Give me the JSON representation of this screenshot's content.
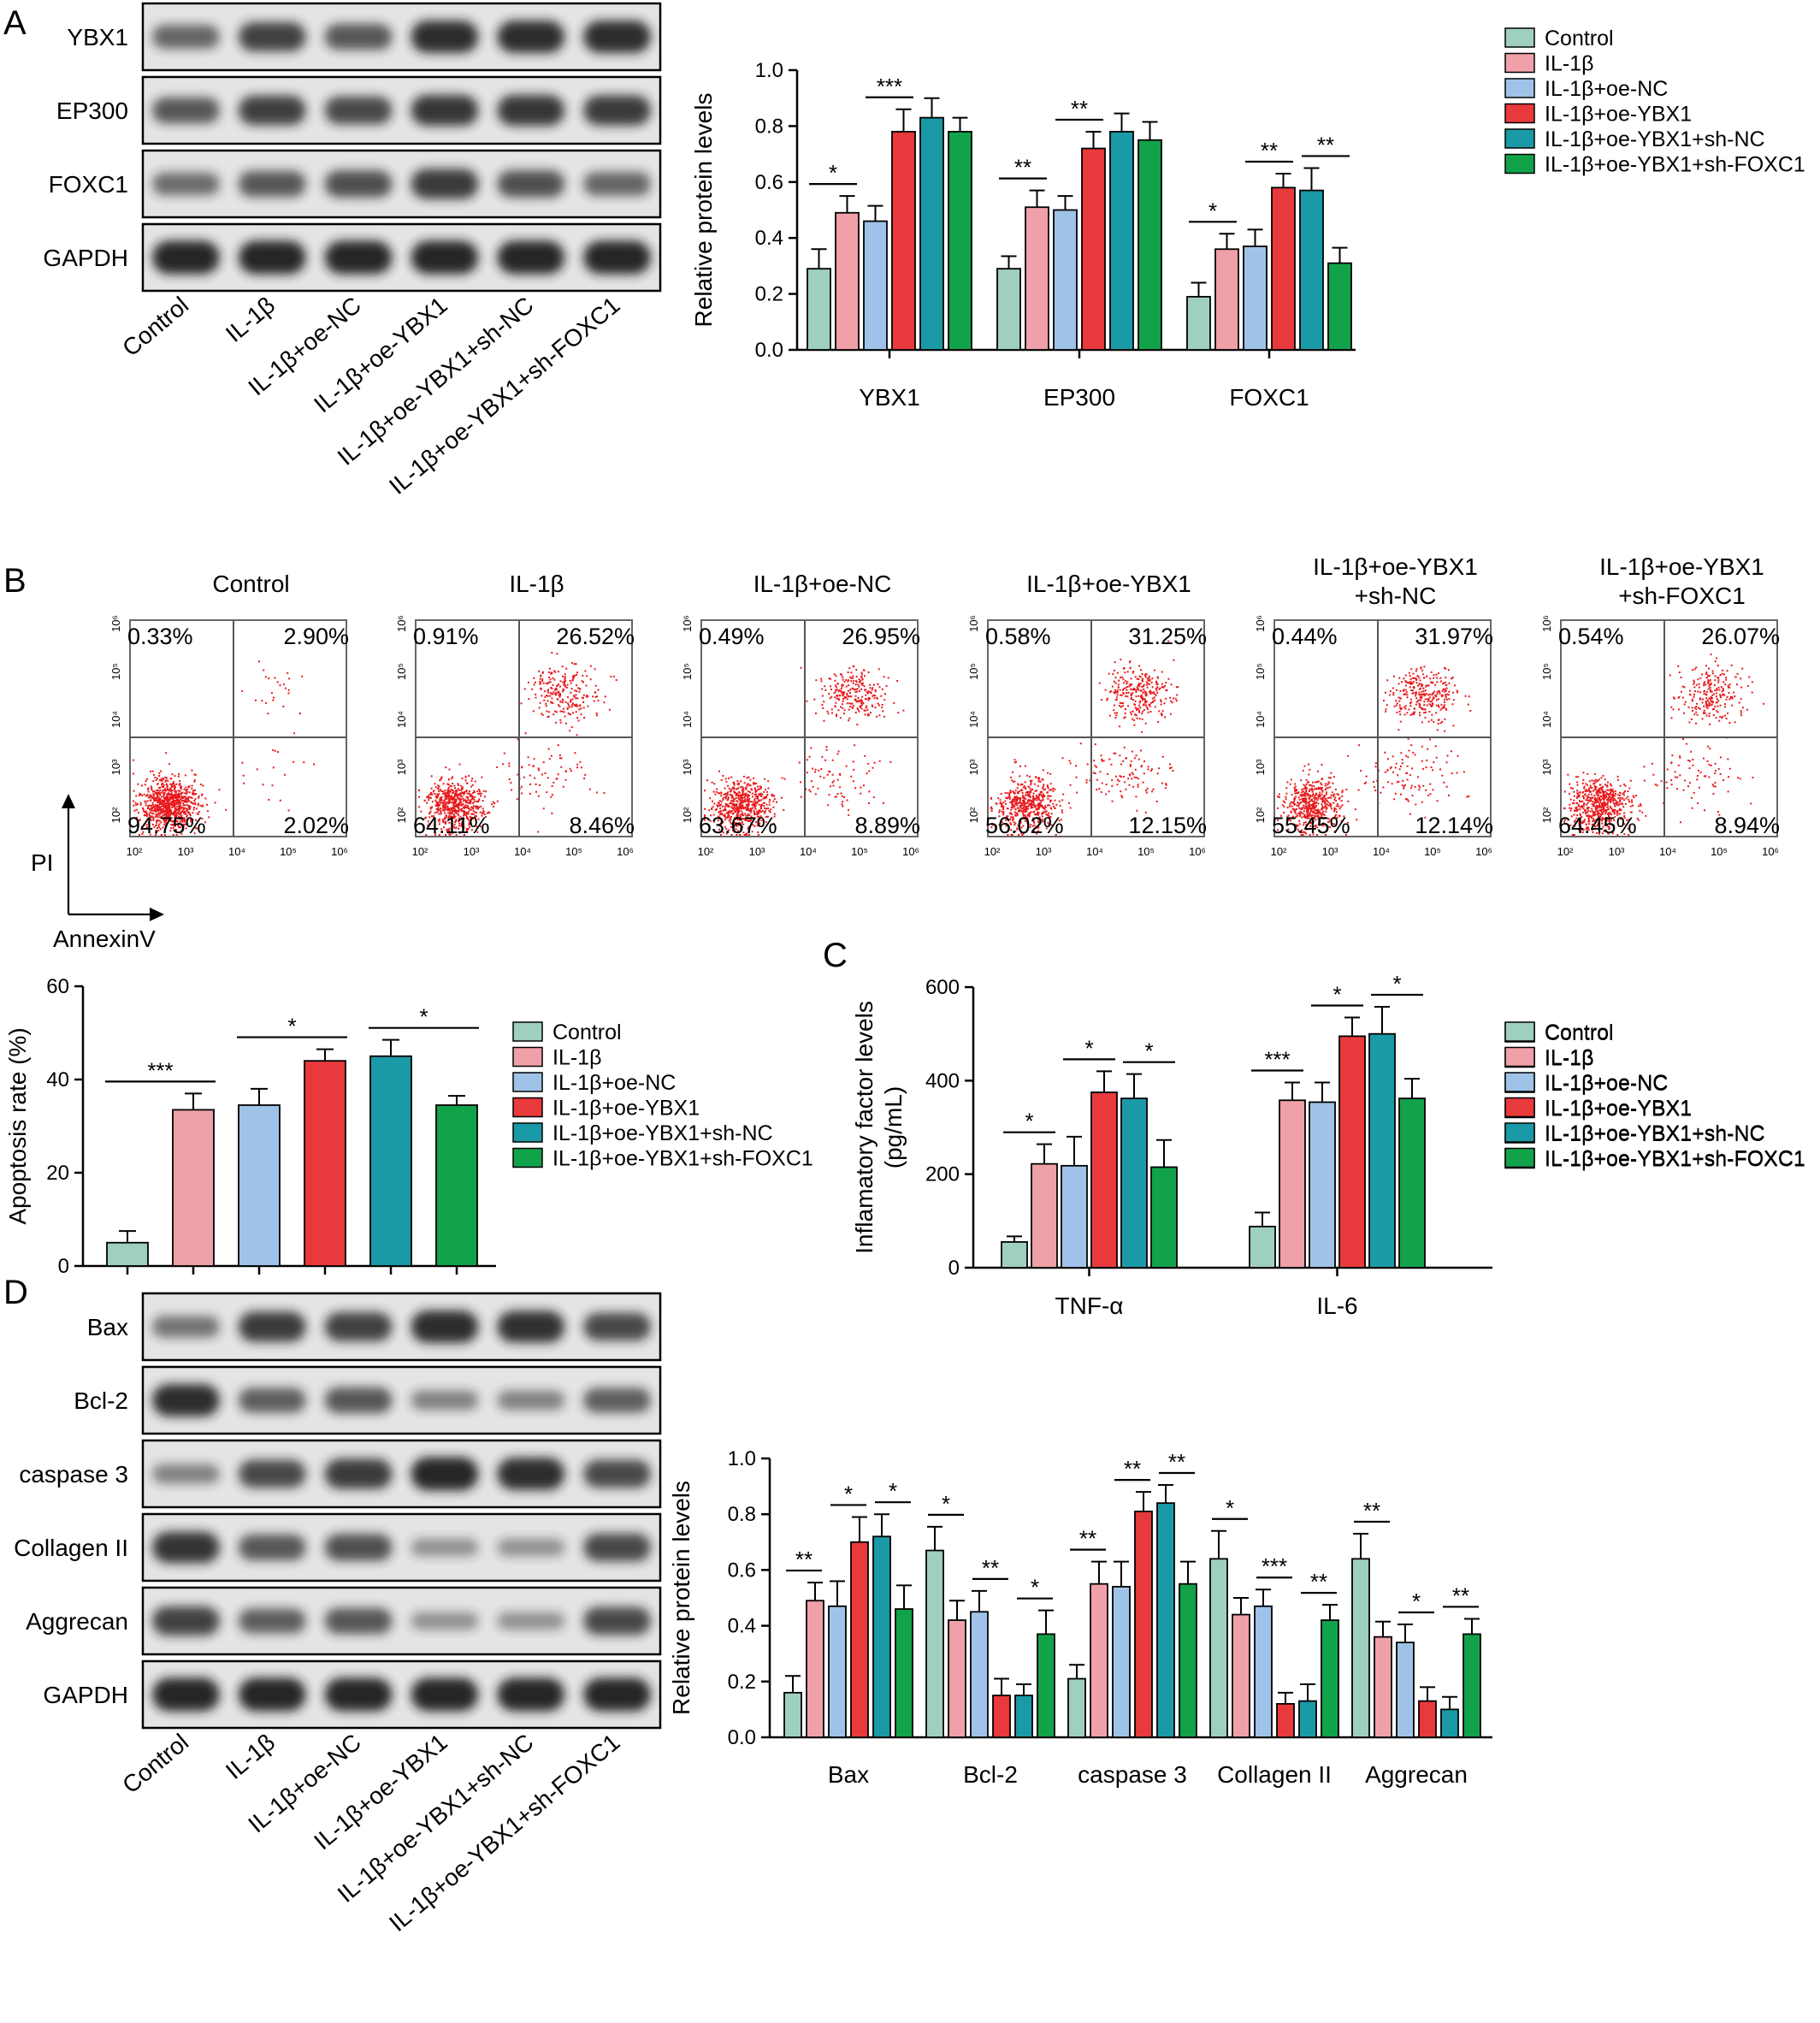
{
  "colors": {
    "series": [
      "#9ecfc0",
      "#f0a0a8",
      "#9fc3e8",
      "#e8393c",
      "#1a9aa6",
      "#12a24a"
    ],
    "axis": "#000000",
    "blot_bg": "#e4e4e4",
    "band": "#1a1a1a",
    "scatter": "#e8191c"
  },
  "groups": [
    "Control",
    "IL-1β",
    "IL-1β+oe-NC",
    "IL-1β+oe-YBX1",
    "IL-1β+oe-YBX1+sh-NC",
    "IL-1β+oe-YBX1+sh-FOXC1"
  ],
  "panels": {
    "A": "A",
    "B": "B",
    "C": "C",
    "D": "D"
  },
  "blotA": {
    "rows": [
      "YBX1",
      "EP300",
      "FOXC1",
      "GAPDH"
    ],
    "intensity": [
      [
        0.55,
        0.8,
        0.65,
        0.95,
        0.95,
        0.95
      ],
      [
        0.65,
        0.82,
        0.75,
        0.88,
        0.88,
        0.85
      ],
      [
        0.5,
        0.65,
        0.7,
        0.85,
        0.7,
        0.55
      ],
      [
        1,
        1,
        1,
        1,
        1,
        1
      ]
    ],
    "lanes": [
      "Control",
      "IL-1β",
      "IL-1β+oe-NC",
      "IL-1β+oe-YBX1",
      "IL-1β+oe-YBX1+sh-NC",
      "IL-1β+oe-YBX1+sh-FOXC1"
    ]
  },
  "blotD": {
    "rows": [
      "Bax",
      "Bcl-2",
      "caspase 3",
      "Collagen II",
      "Aggrecan",
      "GAPDH"
    ],
    "intensity": [
      [
        0.45,
        0.85,
        0.8,
        0.95,
        0.92,
        0.75
      ],
      [
        0.95,
        0.6,
        0.65,
        0.35,
        0.35,
        0.6
      ],
      [
        0.35,
        0.75,
        0.85,
        1,
        0.95,
        0.75
      ],
      [
        0.9,
        0.65,
        0.7,
        0.25,
        0.25,
        0.75
      ],
      [
        0.8,
        0.6,
        0.65,
        0.25,
        0.25,
        0.75
      ],
      [
        1,
        1,
        1,
        1,
        1,
        1
      ]
    ],
    "lanes": [
      "Control",
      "IL-1β",
      "IL-1β+oe-NC",
      "IL-1β+oe-YBX1",
      "IL-1β+oe-YBX1+sh-NC",
      "IL-1β+oe-YBX1+sh-FOXC1"
    ]
  },
  "flow": {
    "titles": [
      [
        "Control"
      ],
      [
        "IL-1β"
      ],
      [
        "IL-1β+oe-NC"
      ],
      [
        "IL-1β+oe-YBX1"
      ],
      [
        "IL-1β+oe-YBX1",
        "+sh-NC"
      ],
      [
        "IL-1β+oe-YBX1",
        "+sh-FOXC1"
      ]
    ],
    "quadrants": [
      {
        "ul": "0.33%",
        "ur": "2.90%",
        "ll": "94.75%",
        "lr": "2.02%"
      },
      {
        "ul": "0.91%",
        "ur": "26.52%",
        "ll": "64.11%",
        "lr": "8.46%"
      },
      {
        "ul": "0.49%",
        "ur": "26.95%",
        "ll": "63.67%",
        "lr": "8.89%"
      },
      {
        "ul": "0.58%",
        "ur": "31.25%",
        "ll": "56.02%",
        "lr": "12.15%"
      },
      {
        "ul": "0.44%",
        "ur": "31.97%",
        "ll": "55.45%",
        "lr": "12.14%"
      },
      {
        "ul": "0.54%",
        "ur": "26.07%",
        "ll": "64.45%",
        "lr": "8.94%"
      }
    ],
    "tick_labels": [
      "10²",
      "10³",
      "10⁴",
      "10⁵",
      "10⁶"
    ],
    "y_axis": "PI",
    "x_axis": "AnnexinV"
  },
  "chart_data": [
    {
      "id": "A",
      "type": "bar",
      "categories": [
        "YBX1",
        "EP300",
        "FOXC1"
      ],
      "ylabel": "Relative protein levels",
      "ylim": [
        0,
        1.0
      ],
      "yticks": [
        "0.0",
        "0.2",
        "0.4",
        "0.6",
        "0.8",
        "1.0"
      ],
      "series": [
        {
          "name": "Control",
          "values": [
            0.29,
            0.29,
            0.19
          ],
          "errors": [
            0.07,
            0.045,
            0.05
          ]
        },
        {
          "name": "IL-1β",
          "values": [
            0.49,
            0.51,
            0.36
          ],
          "errors": [
            0.06,
            0.06,
            0.055
          ]
        },
        {
          "name": "IL-1β+oe-NC",
          "values": [
            0.46,
            0.5,
            0.37
          ],
          "errors": [
            0.055,
            0.05,
            0.06
          ]
        },
        {
          "name": "IL-1β+oe-YBX1",
          "values": [
            0.78,
            0.72,
            0.58
          ],
          "errors": [
            0.08,
            0.06,
            0.05
          ]
        },
        {
          "name": "IL-1β+oe-YBX1+sh-NC",
          "values": [
            0.83,
            0.78,
            0.57
          ],
          "errors": [
            0.07,
            0.065,
            0.08
          ]
        },
        {
          "name": "IL-1β+oe-YBX1+sh-FOXC1",
          "values": [
            0.78,
            0.75,
            0.31
          ],
          "errors": [
            0.05,
            0.065,
            0.055
          ]
        }
      ],
      "significance": [
        {
          "cat": 0,
          "from": 0,
          "to": 1,
          "label": "*"
        },
        {
          "cat": 0,
          "from": 2,
          "to": 3,
          "label": "***"
        },
        {
          "cat": 1,
          "from": 0,
          "to": 1,
          "label": "**"
        },
        {
          "cat": 1,
          "from": 2,
          "to": 3,
          "label": "**"
        },
        {
          "cat": 2,
          "from": 0,
          "to": 1,
          "label": "*"
        },
        {
          "cat": 2,
          "from": 2,
          "to": 3,
          "label": "**"
        },
        {
          "cat": 2,
          "from": 4,
          "to": 5,
          "label": "**"
        }
      ]
    },
    {
      "id": "B",
      "type": "bar",
      "categories": [
        "Control",
        "IL-1β",
        "IL-1β+oe-NC",
        "IL-1β+oe-YBX1",
        "IL-1β+oe-YBX1+sh-NC",
        "IL-1β+oe-YBX1+sh-FOXC1"
      ],
      "ylabel": "Apoptosis rate (%)",
      "ylim": [
        0,
        60
      ],
      "yticks": [
        "0",
        "20",
        "40",
        "60"
      ],
      "values": [
        5,
        33.5,
        34.5,
        44,
        45,
        34.5
      ],
      "errors": [
        2.5,
        3.5,
        3.5,
        2.5,
        3.5,
        2
      ],
      "significance": [
        {
          "from": 0,
          "to": 1,
          "label": "***"
        },
        {
          "from": 2,
          "to": 3,
          "label": "*"
        },
        {
          "from": 4,
          "to": 5,
          "label": "*"
        }
      ]
    },
    {
      "id": "C",
      "type": "bar",
      "categories": [
        "TNF-α",
        "IL-6"
      ],
      "ylabel": "Inflamatory factor levels",
      "ylabel2": "(pg/mL)",
      "ylim": [
        0,
        600
      ],
      "yticks": [
        "0",
        "200",
        "400",
        "600"
      ],
      "series": [
        {
          "name": "Control",
          "values": [
            55,
            88
          ],
          "errors": [
            12,
            30
          ]
        },
        {
          "name": "IL-1β",
          "values": [
            222,
            358
          ],
          "errors": [
            42,
            38
          ]
        },
        {
          "name": "IL-1β+oe-NC",
          "values": [
            218,
            354
          ],
          "errors": [
            62,
            42
          ]
        },
        {
          "name": "IL-1β+oe-YBX1",
          "values": [
            375,
            495
          ],
          "errors": [
            45,
            40
          ]
        },
        {
          "name": "IL-1β+oe-YBX1+sh-NC",
          "values": [
            362,
            500
          ],
          "errors": [
            52,
            58
          ]
        },
        {
          "name": "IL-1β+oe-YBX1+sh-FOXC1",
          "values": [
            215,
            362
          ],
          "errors": [
            58,
            42
          ]
        }
      ],
      "significance": [
        {
          "cat": 0,
          "from": 0,
          "to": 1,
          "label": "*"
        },
        {
          "cat": 0,
          "from": 2,
          "to": 3,
          "label": "*"
        },
        {
          "cat": 0,
          "from": 4,
          "to": 5,
          "label": "*"
        },
        {
          "cat": 1,
          "from": 0,
          "to": 1,
          "label": "***"
        },
        {
          "cat": 1,
          "from": 2,
          "to": 3,
          "label": "*"
        },
        {
          "cat": 1,
          "from": 4,
          "to": 5,
          "label": "*"
        }
      ]
    },
    {
      "id": "D",
      "type": "bar",
      "categories": [
        "Bax",
        "Bcl-2",
        "caspase 3",
        "Collagen II",
        "Aggrecan"
      ],
      "ylabel": "Relative protein levels",
      "ylim": [
        0,
        1.0
      ],
      "yticks": [
        "0.0",
        "0.2",
        "0.4",
        "0.6",
        "0.8",
        "1.0"
      ],
      "series": [
        {
          "name": "Control",
          "values": [
            0.16,
            0.67,
            0.21,
            0.64,
            0.64
          ],
          "errors": [
            0.06,
            0.085,
            0.05,
            0.1,
            0.09
          ]
        },
        {
          "name": "IL-1β",
          "values": [
            0.49,
            0.42,
            0.55,
            0.44,
            0.36
          ],
          "errors": [
            0.065,
            0.07,
            0.08,
            0.06,
            0.055
          ]
        },
        {
          "name": "IL-1β+oe-NC",
          "values": [
            0.47,
            0.45,
            0.54,
            0.47,
            0.34
          ],
          "errors": [
            0.09,
            0.075,
            0.09,
            0.06,
            0.065
          ]
        },
        {
          "name": "IL-1β+oe-YBX1",
          "values": [
            0.7,
            0.15,
            0.81,
            0.12,
            0.13
          ],
          "errors": [
            0.09,
            0.06,
            0.07,
            0.04,
            0.05
          ]
        },
        {
          "name": "IL-1β+oe-YBX1+sh-NC",
          "values": [
            0.72,
            0.15,
            0.84,
            0.13,
            0.1
          ],
          "errors": [
            0.08,
            0.04,
            0.065,
            0.06,
            0.045
          ]
        },
        {
          "name": "IL-1β+oe-YBX1+sh-FOXC1",
          "values": [
            0.46,
            0.37,
            0.55,
            0.42,
            0.37
          ],
          "errors": [
            0.085,
            0.085,
            0.08,
            0.055,
            0.055
          ]
        }
      ],
      "significance": [
        {
          "cat": 0,
          "from": 0,
          "to": 1,
          "label": "**"
        },
        {
          "cat": 0,
          "from": 2,
          "to": 3,
          "label": "*"
        },
        {
          "cat": 0,
          "from": 4,
          "to": 5,
          "label": "*"
        },
        {
          "cat": 1,
          "from": 0,
          "to": 1,
          "label": "*"
        },
        {
          "cat": 1,
          "from": 2,
          "to": 3,
          "label": "**"
        },
        {
          "cat": 1,
          "from": 4,
          "to": 5,
          "label": "*"
        },
        {
          "cat": 2,
          "from": 0,
          "to": 1,
          "label": "**"
        },
        {
          "cat": 2,
          "from": 2,
          "to": 3,
          "label": "**"
        },
        {
          "cat": 2,
          "from": 4,
          "to": 5,
          "label": "**"
        },
        {
          "cat": 3,
          "from": 0,
          "to": 1,
          "label": "*"
        },
        {
          "cat": 3,
          "from": 2,
          "to": 3,
          "label": "***"
        },
        {
          "cat": 3,
          "from": 4,
          "to": 5,
          "label": "**"
        },
        {
          "cat": 4,
          "from": 0,
          "to": 1,
          "label": "**"
        },
        {
          "cat": 4,
          "from": 2,
          "to": 3,
          "label": "*"
        },
        {
          "cat": 4,
          "from": 4,
          "to": 5,
          "label": "**"
        }
      ]
    }
  ]
}
